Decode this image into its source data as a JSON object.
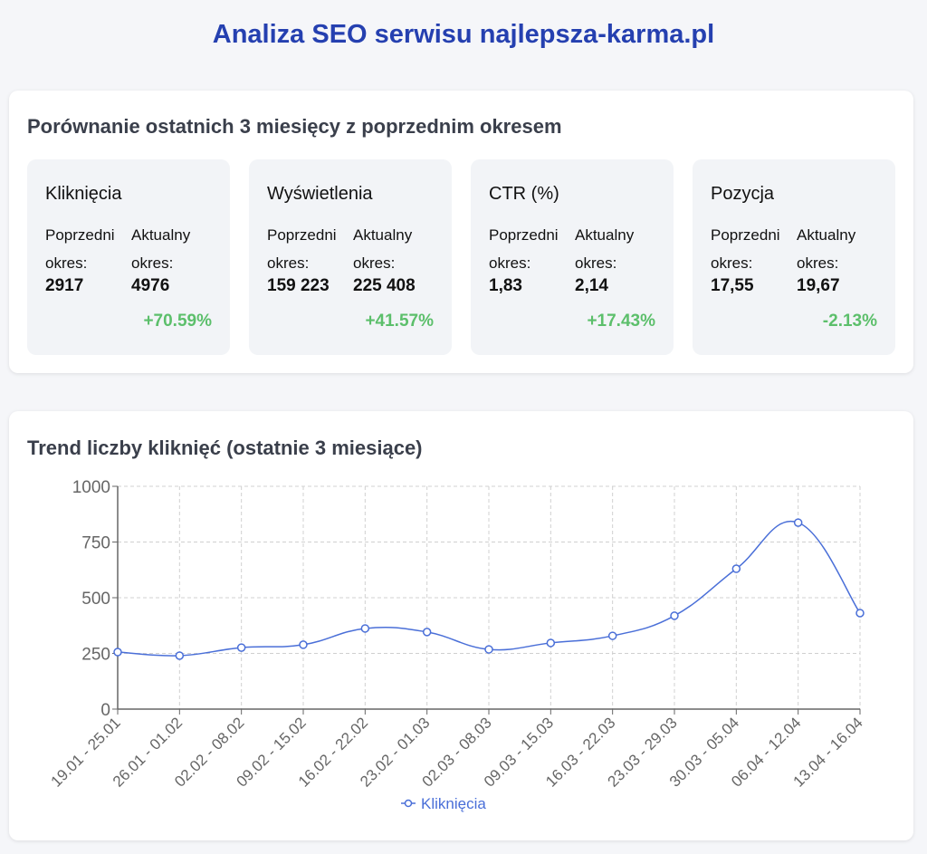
{
  "title": "Analiza SEO serwisu najlepsza-karma.pl",
  "comparison": {
    "title": "Porównanie ostatnich 3 miesięcy z poprzednim okresem",
    "prev_label": "Poprzedni okres:",
    "curr_label": "Aktualny okres:",
    "cards": [
      {
        "name": "Kliknięcia",
        "prev": "2917",
        "curr": "4976",
        "change": "+70.59%"
      },
      {
        "name": "Wyświetlenia",
        "prev": "159 223",
        "curr": "225 408",
        "change": "+41.57%"
      },
      {
        "name": "CTR (%)",
        "prev": "1,83",
        "curr": "2,14",
        "change": "+17.43%"
      },
      {
        "name": "Pozycja",
        "prev": "17,55",
        "curr": "19,67",
        "change": "-2.13%"
      }
    ],
    "change_color": "#5cbf6b"
  },
  "chart_data": {
    "type": "line",
    "title": "Trend liczby kliknięć (ostatnie 3 miesiące)",
    "categories": [
      "19.01 - 25.01",
      "26.01 - 01.02",
      "02.02 - 08.02",
      "09.02 - 15.02",
      "16.02 - 22.02",
      "23.02 - 01.03",
      "02.03 - 08.03",
      "09.03 - 15.03",
      "16.03 - 22.03",
      "23.03 - 29.03",
      "30.03 - 05.04",
      "06.04 - 12.04",
      "13.04 - 16.04"
    ],
    "series": [
      {
        "name": "Kliknięcia",
        "values": [
          256,
          240,
          276,
          289,
          362,
          346,
          268,
          297,
          329,
          419,
          630,
          837,
          431
        ],
        "color": "#4a6fd8"
      }
    ],
    "yticks": [
      0,
      250,
      500,
      750,
      1000
    ],
    "ylim": [
      0,
      1000
    ],
    "grid": true,
    "legend": "bottom"
  }
}
